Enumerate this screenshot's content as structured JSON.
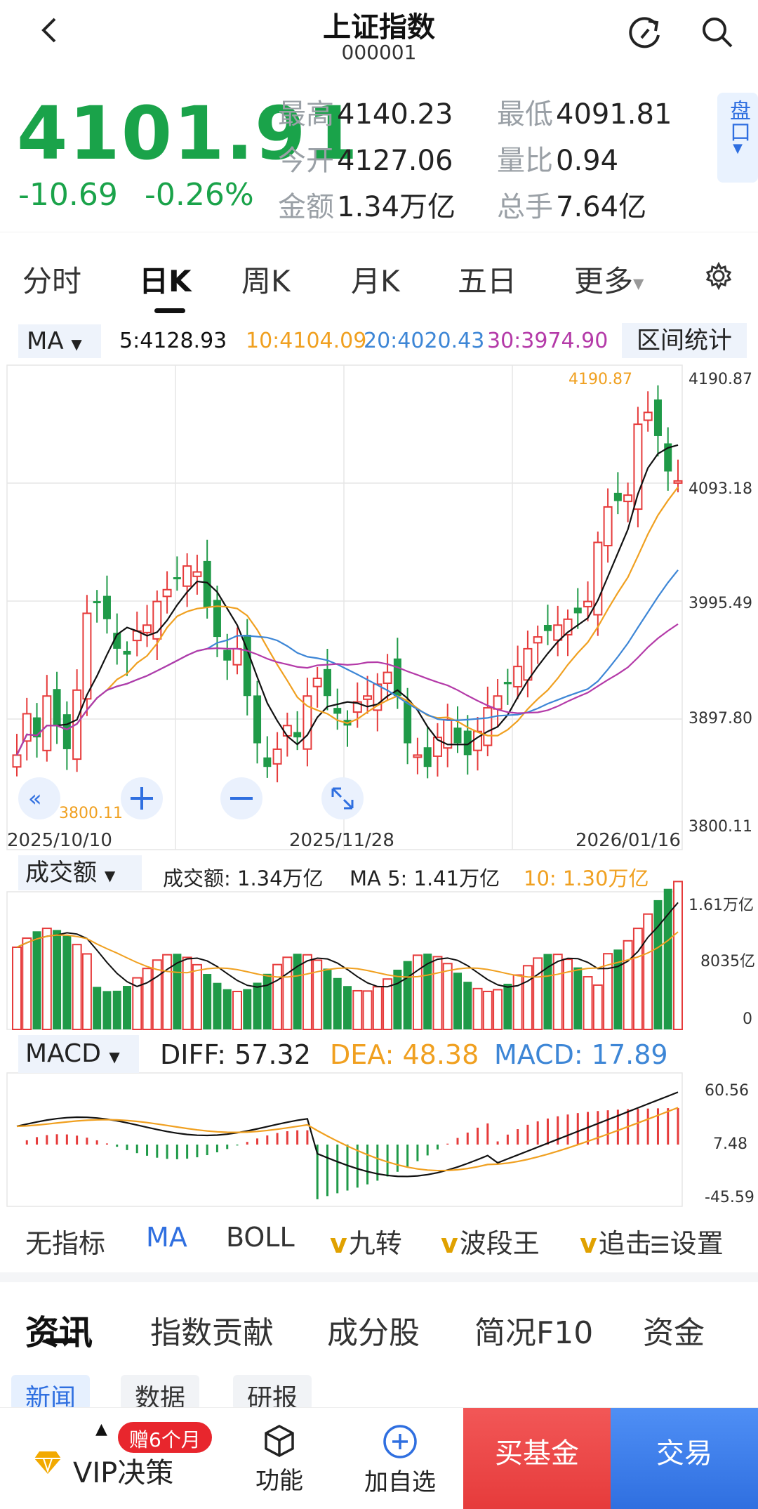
{
  "header": {
    "title": "上证指数",
    "code": "000001"
  },
  "quote": {
    "price": "4101.91",
    "change": "-10.69",
    "change_pct": "-0.26%",
    "stats": [
      {
        "label": "最高",
        "value": "4140.23"
      },
      {
        "label": "最低",
        "value": "4091.81"
      },
      {
        "label": "今开",
        "value": "4127.06"
      },
      {
        "label": "量比",
        "value": "0.94"
      },
      {
        "label": "金额",
        "value": "1.34万亿"
      },
      {
        "label": "总手",
        "value": "7.64亿"
      }
    ],
    "pankou_label": "盘口"
  },
  "period_tabs": [
    "分时",
    "日K",
    "周K",
    "月K",
    "五日",
    "更多"
  ],
  "ma_bar": {
    "selector": "MA",
    "ma5": "5:4128.93",
    "ma10": "10:4104.09",
    "ma20": "20:4020.43",
    "ma30": "30:3974.90",
    "range_stats": "区间统计"
  },
  "price_chart": {
    "y_ticks": [
      "4190.87",
      "4093.18",
      "3995.49",
      "3897.80",
      "3800.11"
    ],
    "x_ticks": [
      "2025/10/10",
      "2025/11/28",
      "2026/01/16"
    ],
    "high_label": "4190.87",
    "low_label": "3800.11"
  },
  "volume_bar": {
    "selector": "成交额",
    "amount": "成交额: 1.34万亿",
    "ma5": "MA 5: 1.41万亿",
    "ma10": "10: 1.30万亿",
    "y_ticks": [
      "1.61万亿",
      "8035亿",
      "0"
    ]
  },
  "macd_bar": {
    "selector": "MACD",
    "diff": "DIFF: 57.32",
    "dea": "DEA: 48.38",
    "macd": "MACD: 17.89",
    "y_ticks": [
      "60.56",
      "7.48",
      "-45.59"
    ]
  },
  "indicators": {
    "none": "无指标",
    "ma": "MA",
    "boll": "BOLL",
    "jiuzhuan": "九转",
    "boduan": "波段王",
    "zhui": "追击",
    "settings": "设置"
  },
  "news_tabs": [
    "资讯",
    "指数贡献",
    "成分股",
    "简况F10",
    "资金"
  ],
  "chips": [
    "新闻",
    "数据",
    "研报"
  ],
  "bottom": {
    "vip": "VIP决策",
    "gift": "赠6个月",
    "function": "功能",
    "add_watch": "加自选",
    "buy_fund": "买基金",
    "trade": "交易"
  },
  "colors": {
    "up": "#e63b3b",
    "down": "#1f9a48",
    "ma5": "#111111",
    "ma10": "#f0a020",
    "ma20": "#3d86d6",
    "ma30": "#b43aa8",
    "accent": "#2f6fe0"
  }
}
